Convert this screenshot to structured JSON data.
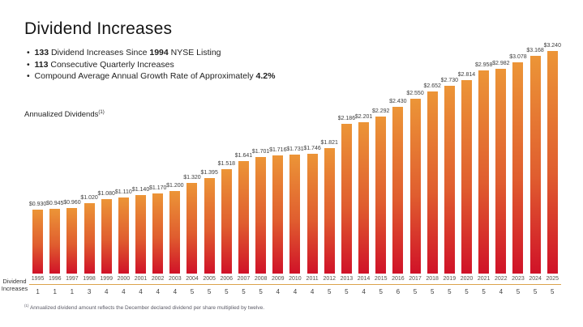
{
  "title": "Dividend Increases",
  "bullets": [
    {
      "segments": [
        {
          "t": "133",
          "b": true
        },
        {
          "t": " Dividend Increases Since ",
          "b": false
        },
        {
          "t": "1994",
          "b": true
        },
        {
          "t": " NYSE Listing",
          "b": false
        }
      ]
    },
    {
      "segments": [
        {
          "t": "113",
          "b": true
        },
        {
          "t": " Consecutive Quarterly Increases",
          "b": false
        }
      ]
    },
    {
      "segments": [
        {
          "t": "Compound Average Annual Growth Rate of Approximately ",
          "b": false
        },
        {
          "t": "4.2%",
          "b": true
        }
      ]
    }
  ],
  "chart_label": "Annualized Dividends",
  "chart_label_superscript": "(1)",
  "row_label_line1": "Dividend",
  "row_label_line2": "Increases",
  "footnote_superscript": "(1)",
  "footnote": "Annualized dividend amount reflects the December declared dividend per share multiplied by twelve.",
  "colors": {
    "bar_gradient_top": "#EC9537",
    "bar_gradient_mid": "#E05E2F",
    "bar_gradient_bottom": "#D01228",
    "axis_line": "#DBA34C"
  },
  "chart_data": {
    "type": "bar",
    "title": "Annualized Dividends",
    "xlabel": "",
    "ylabel": "",
    "ylim": [
      0,
      3.24
    ],
    "grid": false,
    "legend": false,
    "categories": [
      "1995",
      "1996",
      "1997",
      "1998",
      "1999",
      "2000",
      "2001",
      "2002",
      "2003",
      "2004",
      "2005",
      "2006",
      "2007",
      "2008",
      "2009",
      "2010",
      "2011",
      "2012",
      "2013",
      "2014",
      "2015",
      "2016",
      "2017",
      "2018",
      "2019",
      "2020",
      "2021",
      "2022",
      "2023",
      "2024",
      "2025"
    ],
    "values": [
      0.93,
      0.945,
      0.96,
      1.02,
      1.08,
      1.11,
      1.14,
      1.17,
      1.2,
      1.32,
      1.395,
      1.518,
      1.641,
      1.701,
      1.716,
      1.731,
      1.746,
      1.821,
      2.186,
      2.201,
      2.292,
      2.43,
      2.55,
      2.652,
      2.73,
      2.814,
      2.958,
      2.982,
      3.078,
      3.168,
      3.24
    ],
    "value_labels": [
      "$0.930",
      "$0.945",
      "$0.960",
      "$1.020",
      "$1.080",
      "$1.110",
      "$1.140",
      "$1.170",
      "$1.200",
      "$1.320",
      "$1.395",
      "$1.518",
      "$1.641",
      "$1.701",
      "$1.716",
      "$1.731",
      "$1.746",
      "$1.821",
      "$2.186",
      "$2.201",
      "$2.292",
      "$2.430",
      "$2.550",
      "$2.652",
      "$2.730",
      "$2.814",
      "$2.958",
      "$2.982",
      "$3.078",
      "$3.168",
      "$3.240"
    ],
    "dividend_increases": [
      1,
      1,
      1,
      3,
      4,
      4,
      4,
      4,
      4,
      5,
      5,
      5,
      5,
      5,
      4,
      4,
      4,
      5,
      5,
      4,
      5,
      6,
      5,
      5,
      5,
      5,
      5,
      4,
      5,
      5,
      5
    ]
  }
}
